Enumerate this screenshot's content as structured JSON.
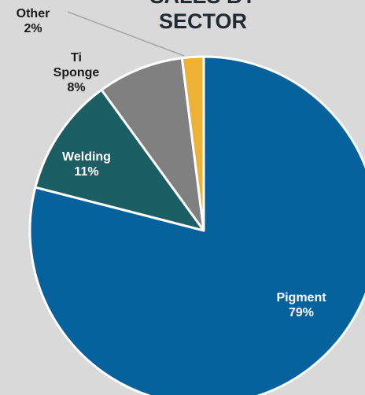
{
  "chart_data": {
    "type": "pie",
    "title_lines": [
      "SALES BY",
      "SECTOR"
    ],
    "slices": [
      {
        "label_lines": [
          "Pigment"
        ],
        "value": 79,
        "pct_label": "79%",
        "color": "#05629c",
        "label_color": "#ffffff"
      },
      {
        "label_lines": [
          "Welding"
        ],
        "value": 11,
        "pct_label": "11%",
        "color": "#1b5e63",
        "label_color": "#ffffff"
      },
      {
        "label_lines": [
          "Ti",
          "Sponge"
        ],
        "value": 8,
        "pct_label": "8%",
        "color": "#808080",
        "label_color": "#1a1a1a"
      },
      {
        "label_lines": [
          "Other"
        ],
        "value": 2,
        "pct_label": "2%",
        "color": "#ecb135",
        "label_color": "#1a1a1a"
      }
    ],
    "start": "12 o'clock",
    "direction": "clockwise",
    "legend": "none",
    "grid": false
  }
}
